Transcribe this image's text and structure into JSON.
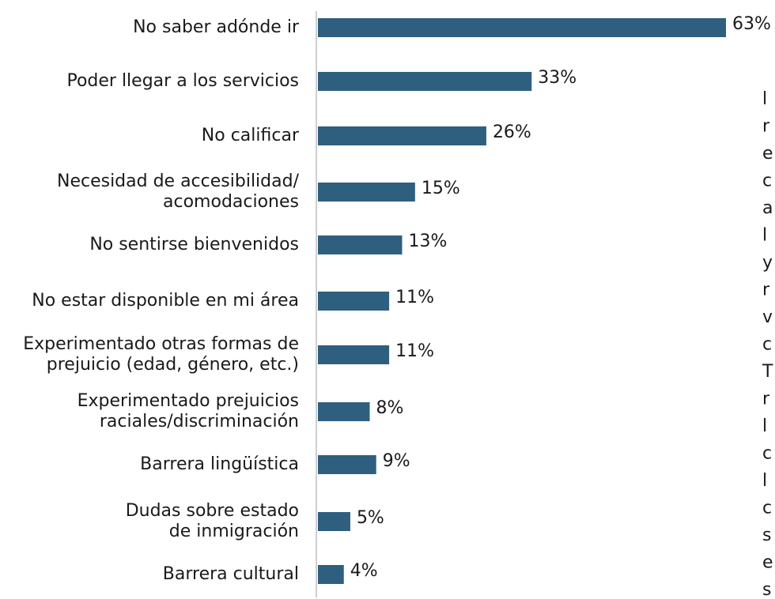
{
  "chart_data": {
    "type": "bar",
    "orientation": "horizontal",
    "categories": [
      [
        "No saber adónde ir"
      ],
      [
        "Poder llegar a los servicios"
      ],
      [
        "No calificar"
      ],
      [
        "Necesidad de accesibilidad/",
        "acomodaciones"
      ],
      [
        "No sentirse bienvenidos"
      ],
      [
        "No estar disponible en mi área"
      ],
      [
        "Experimentado otras formas de",
        "prejuicio (edad, género, etc.)"
      ],
      [
        "Experimentado prejuicios",
        "raciales/discriminación"
      ],
      [
        "Barrera lingüística"
      ],
      [
        "Dudas sobre estado",
        "de inmigración"
      ],
      [
        "Barrera cultural"
      ]
    ],
    "values": [
      63,
      33,
      26,
      15,
      13,
      11,
      11,
      8,
      9,
      5,
      4
    ],
    "value_labels": [
      "63%",
      "33%",
      "26%",
      "15%",
      "13%",
      "11%",
      "11%",
      "8%",
      "9%",
      "5%",
      "4%"
    ],
    "unit": "%",
    "bar_color": "#2e5f7f",
    "title": "",
    "xlabel": "",
    "ylabel": "",
    "grid": false
  },
  "clipped_text_column": [
    "l",
    "r",
    "e",
    "c",
    "a",
    "l",
    "y",
    "r",
    "v",
    "c",
    "T",
    "r",
    "l",
    "c",
    "l",
    "c",
    "s",
    "e",
    "s"
  ]
}
